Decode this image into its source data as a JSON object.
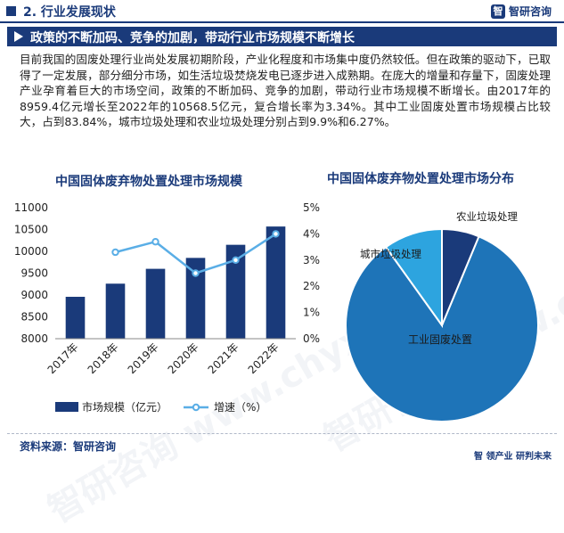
{
  "header": {
    "title": "2. 行业发展现状"
  },
  "logo": {
    "mark": "智",
    "text": "智研咨询"
  },
  "banner": {
    "text": "政策的不断加码、竞争的加剧，带动行业市场规模不断增长"
  },
  "paragraph": "目前我国的固废处理行业尚处发展初期阶段，产业化程度和市场集中度仍然较低。但在政策的驱动下，已取得了一定发展，部分细分市场，如生活垃圾焚烧发电已逐步进入成熟期。在庞大的增量和存量下，固废处理产业孕育着巨大的市场空间，政策的不断加码、竞争的加剧，带动行业市场规模不断增长。由2017年的8959.4亿元增长至2022年的10568.5亿元，复合增长率为3.34%。其中工业固废处置市场规模占比较大，占到83.84%，城市垃圾处理和农业垃圾处理分别占到9.9%和6.27%。",
  "watermark": "智研咨询 www.chyxx.com",
  "footer": {
    "source": "资料来源：智研咨询",
    "slogan_mark": "智",
    "slogan": "领产业  研判未来"
  },
  "colors": {
    "primary": "#1a3a7a",
    "line": "#5aaee6",
    "pie_main": "#1e74b8",
    "pie_city": "#2da4df",
    "pie_agri": "#1a3a7a"
  },
  "chart_data": [
    {
      "type": "bar",
      "title": "中国固体废弃物处置处理市场规模",
      "categories": [
        "2017年",
        "2018年",
        "2019年",
        "2020年",
        "2021年",
        "2022年"
      ],
      "series": [
        {
          "name": "市场规模（亿元）",
          "type": "bar",
          "axis": "left",
          "values": [
            8959.4,
            9260,
            9600,
            9850,
            10150,
            10568.5
          ]
        },
        {
          "name": "增速（%）",
          "type": "line",
          "axis": "right",
          "values": [
            null,
            3.3,
            3.7,
            2.5,
            3.0,
            4.0
          ]
        }
      ],
      "y_left": {
        "min": 8000,
        "max": 11000,
        "ticks": [
          "8000",
          "8500",
          "9000",
          "9500",
          "10000",
          "10500",
          "11000"
        ]
      },
      "y_right": {
        "min": 0,
        "max": 5,
        "ticks": [
          "0%",
          "1%",
          "2%",
          "3%",
          "4%",
          "5%"
        ]
      },
      "legend": "bottom"
    },
    {
      "type": "pie",
      "title": "中国固体废弃物处置处理市场分布",
      "slices": [
        {
          "label": "工业固废处置",
          "value": 83.84
        },
        {
          "label": "城市垃圾处理",
          "value": 9.9
        },
        {
          "label": "农业垃圾处理",
          "value": 6.27
        }
      ]
    }
  ]
}
